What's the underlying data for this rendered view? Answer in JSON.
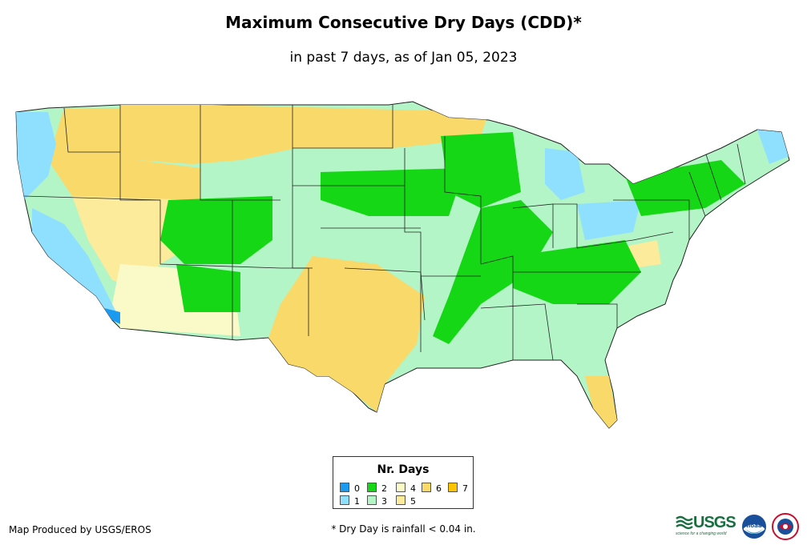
{
  "title": "Maximum Consecutive Dry Days (CDD)*",
  "subtitle": "in past 7 days, as of Jan 05, 2023",
  "legend": {
    "title": "Nr. Days",
    "items": [
      {
        "label": "0",
        "color": "#1a9af0"
      },
      {
        "label": "1",
        "color": "#8fe0ff"
      },
      {
        "label": "2",
        "color": "#16d716"
      },
      {
        "label": "3",
        "color": "#b3f5c6"
      },
      {
        "label": "4",
        "color": "#fafac8"
      },
      {
        "label": "5",
        "color": "#fceb9a"
      },
      {
        "label": "6",
        "color": "#f9d96a"
      },
      {
        "label": "7",
        "color": "#ffc400"
      }
    ]
  },
  "credit": "Map Produced by USGS/EROS",
  "footnote": "* Dry Day is rainfall < 0.04 in.",
  "logos": {
    "usgs_text": "USGS",
    "usgs_tagline": "science for a changing world",
    "noaa_text": "noaa"
  }
}
